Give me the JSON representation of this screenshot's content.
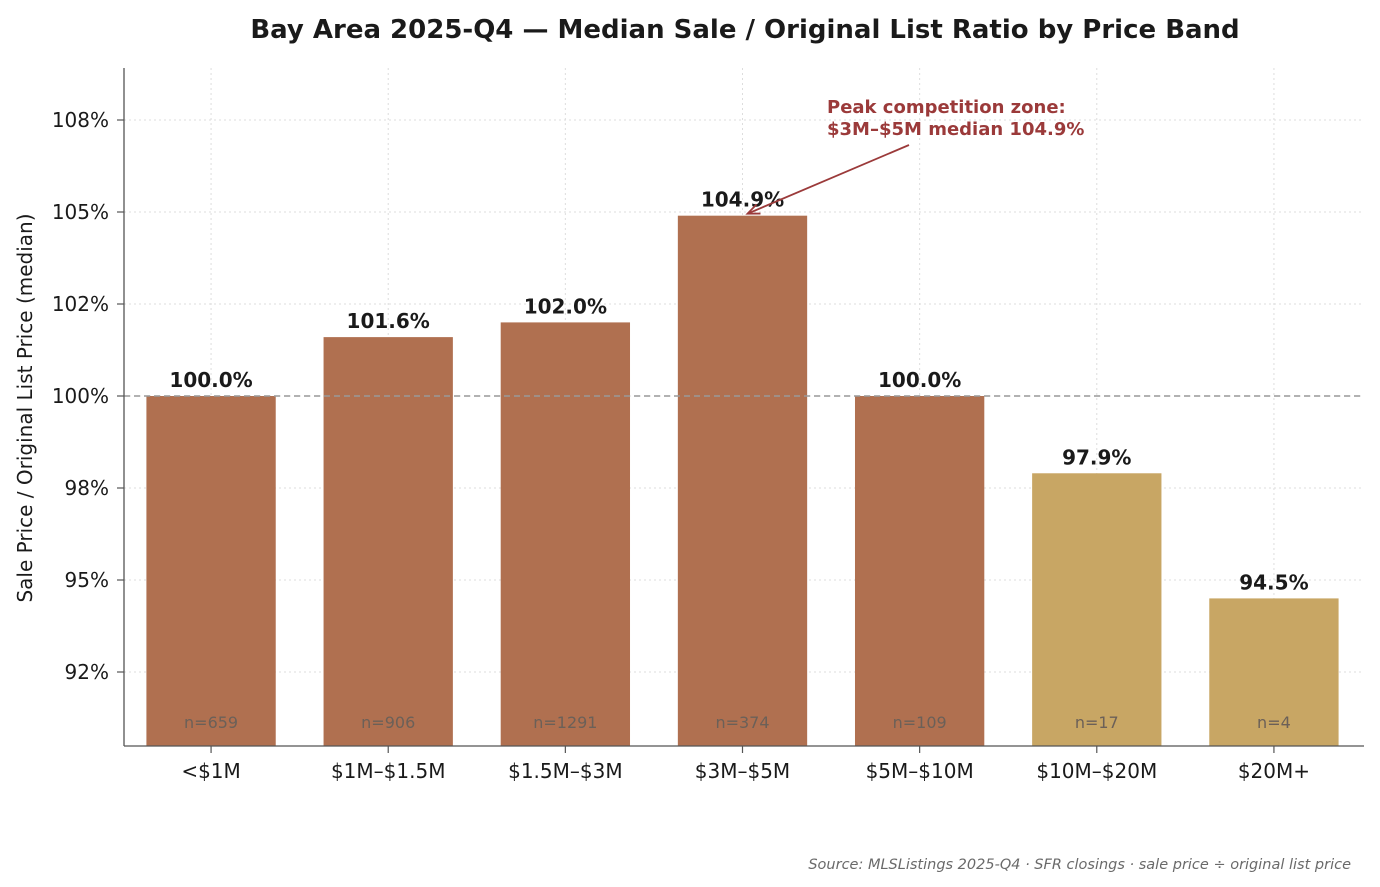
{
  "chart_data": {
    "type": "bar",
    "title": "Bay Area 2025-Q4 — Median Sale / Original List Ratio by Price Band",
    "ylabel": "Sale Price / Original List Price (median)",
    "xlabel": "",
    "ylim": [
      90.6,
      105.4
    ],
    "categories": [
      "<$1M",
      "$1M–$1.5M",
      "$1.5M–$3M",
      "$3M–$5M",
      "$5M–$10M",
      "$10M–$20M",
      "$20M+"
    ],
    "values": [
      100.0,
      101.6,
      102.0,
      104.9,
      100.0,
      97.9,
      94.5
    ],
    "value_labels": [
      "100.0%",
      "101.6%",
      "102.0%",
      "104.9%",
      "100.0%",
      "97.9%",
      "94.5%"
    ],
    "counts": [
      "n=659",
      "n=906",
      "n=1291",
      "n=374",
      "n=109",
      "n=17",
      "n=4"
    ],
    "bar_colors": [
      "#b07050",
      "#b07050",
      "#b07050",
      "#b07050",
      "#b07050",
      "#c8a664",
      "#c8a664"
    ],
    "yticks": [
      92.5,
      95,
      97.5,
      100,
      102.5,
      105,
      107.5
    ],
    "ytick_labels": [
      "92%",
      "95%",
      "98%",
      "100%",
      "102%",
      "105%",
      "108%"
    ],
    "reference_line": 100,
    "annotation": {
      "lines": [
        "Peak competition zone:",
        "$3M–$5M median 104.9%"
      ],
      "target_category": "$3M–$5M",
      "target_value": 104.9,
      "color": "#9b3a3a"
    },
    "grid": true,
    "source": "Source: MLSListings 2025-Q4 · SFR closings · sale price ÷ original list price"
  }
}
